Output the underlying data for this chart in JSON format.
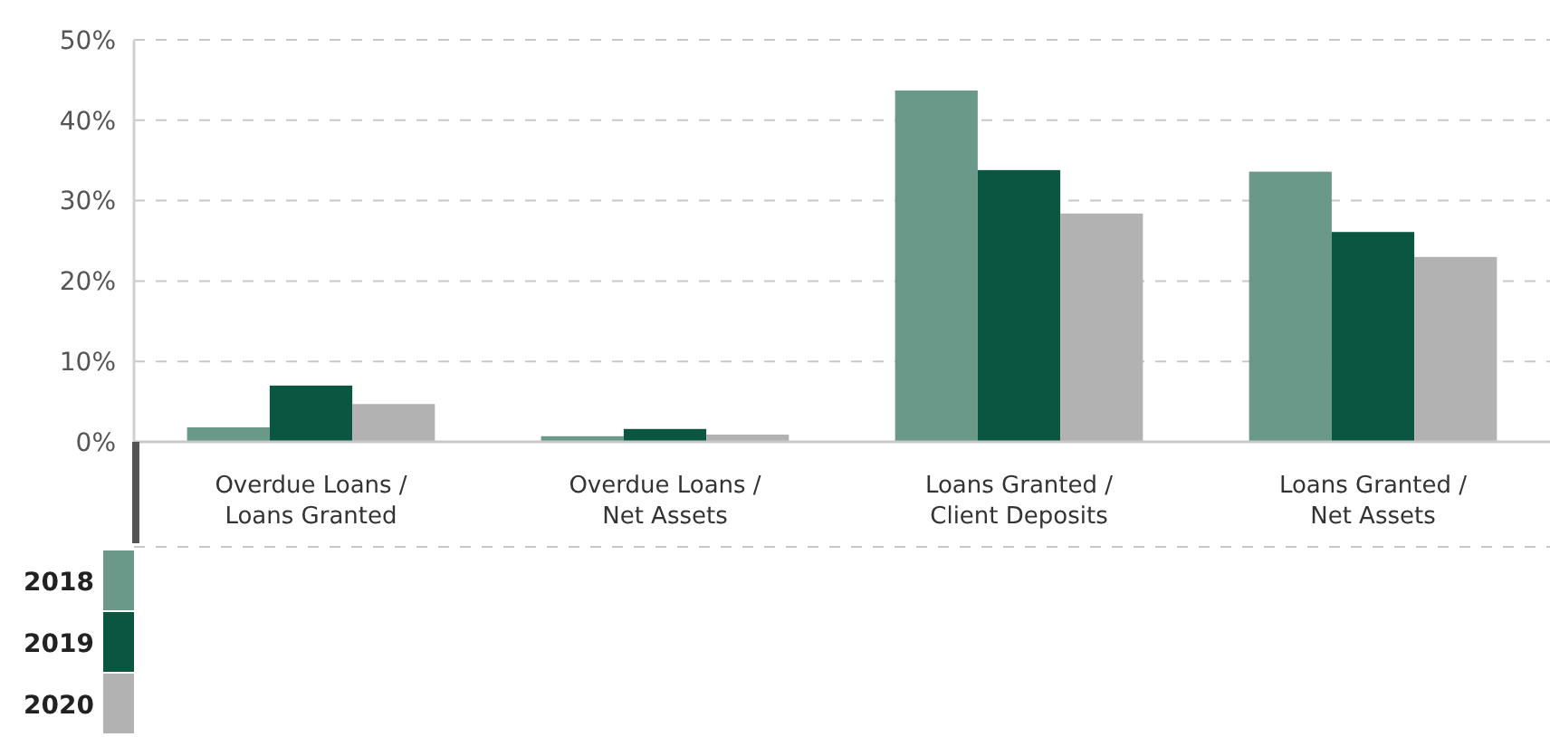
{
  "chart_data": {
    "type": "bar",
    "categories": [
      "Overdue Loans /\nLoans Granted",
      "Overdue Loans /\nNet Assets",
      "Loans Granted /\nClient Deposits",
      "Loans Granted /\nNet Assets"
    ],
    "series": [
      {
        "name": "2018",
        "color": "#6a998a",
        "values": [
          1.8,
          0.7,
          43.7,
          33.6
        ]
      },
      {
        "name": "2019",
        "color": "#0b5641",
        "values": [
          7.0,
          1.6,
          33.8,
          26.1
        ]
      },
      {
        "name": "2020",
        "color": "#b2b2b2",
        "values": [
          4.7,
          0.9,
          28.4,
          23.0
        ]
      }
    ],
    "ylim": [
      0,
      50
    ],
    "yticks": [
      {
        "value": 0,
        "label": "0%"
      },
      {
        "value": 10,
        "label": "10%"
      },
      {
        "value": 20,
        "label": "20%"
      },
      {
        "value": 30,
        "label": "30%"
      },
      {
        "value": 40,
        "label": "40%"
      },
      {
        "value": 50,
        "label": "50%"
      }
    ],
    "grid": "y",
    "legend": "bottom left"
  }
}
